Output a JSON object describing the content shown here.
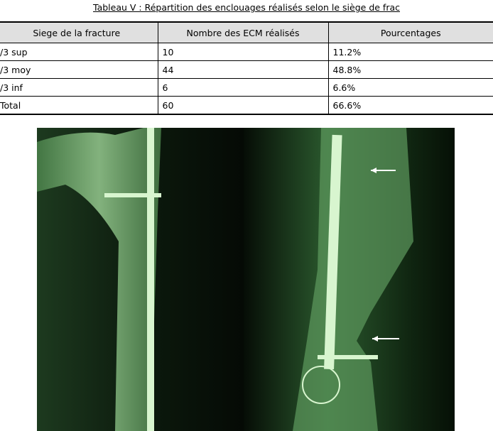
{
  "header": {
    "title": "Tableau V : Répartition des enclouages réalisés selon le siège de frac"
  },
  "table": {
    "headers": [
      "Siege de la fracture",
      "Nombre des ECM réalisés",
      "Pourcentages"
    ],
    "rows": [
      [
        "/3 sup",
        "10",
        "11.2%"
      ],
      [
        "/3 moy",
        "44",
        "48.8%"
      ],
      [
        "/3 inf",
        "6",
        "6.6%"
      ],
      [
        "Total",
        "60",
        "66.6%"
      ]
    ]
  }
}
